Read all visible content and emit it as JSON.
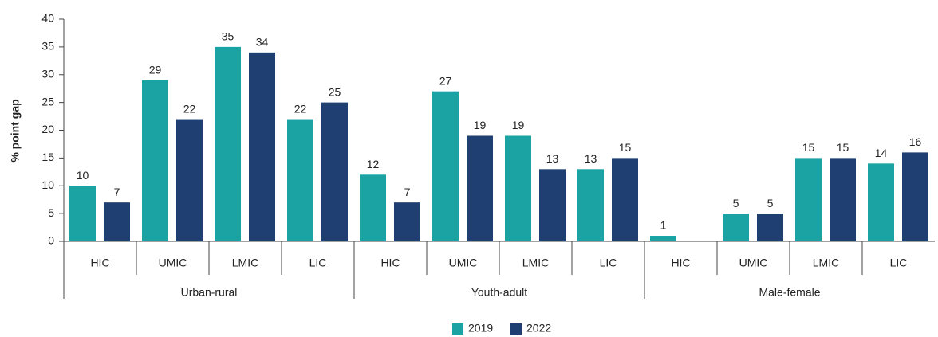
{
  "chart_data": {
    "type": "bar",
    "y_label": "% point gap",
    "categories": [
      "HIC",
      "UMIC",
      "LMIC",
      "LIC",
      "HIC",
      "UMIC",
      "LMIC",
      "LIC",
      "HIC",
      "UMIC",
      "LMIC",
      "LIC"
    ],
    "group_labels": [
      "Urban-rural",
      "Youth-adult",
      "Male-female"
    ],
    "series": [
      {
        "name": "2019",
        "color": "#1ba3a3",
        "values": [
          10,
          29,
          35,
          22,
          12,
          27,
          19,
          13,
          1,
          5,
          15,
          14
        ]
      },
      {
        "name": "2022",
        "color": "#1f3e72",
        "values": [
          7,
          22,
          34,
          25,
          7,
          19,
          13,
          15,
          null,
          5,
          15,
          16
        ]
      }
    ],
    "ylim": [
      0,
      40
    ],
    "yticks": [
      0,
      5,
      10,
      15,
      20,
      25,
      30,
      35,
      40
    ],
    "legend": "bottom"
  }
}
